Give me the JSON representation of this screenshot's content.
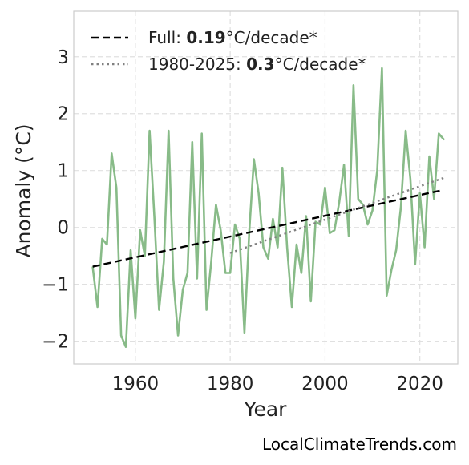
{
  "chart_data": {
    "type": "line",
    "xlabel": "Year",
    "ylabel": "Anomaly (°C)",
    "xlim": [
      1947,
      2028
    ],
    "ylim": [
      -2.4,
      3.8
    ],
    "x_ticks": [
      1960,
      1980,
      2000,
      2020
    ],
    "y_ticks": [
      -2,
      -1,
      0,
      1,
      2,
      3
    ],
    "y_tick_labels": [
      "−2",
      "−1",
      "0",
      "1",
      "2",
      "3"
    ],
    "grid": true,
    "legend_position": "top-left",
    "series": [
      {
        "color": "#88bb88",
        "style": "solid",
        "x": [
          1951,
          1952,
          1953,
          1954,
          1955,
          1956,
          1957,
          1958,
          1959,
          1960,
          1961,
          1962,
          1963,
          1964,
          1965,
          1966,
          1967,
          1968,
          1969,
          1970,
          1971,
          1972,
          1973,
          1974,
          1975,
          1976,
          1977,
          1978,
          1979,
          1980,
          1981,
          1982,
          1983,
          1984,
          1985,
          1986,
          1987,
          1988,
          1989,
          1990,
          1991,
          1992,
          1993,
          1994,
          1995,
          1996,
          1997,
          1998,
          1999,
          2000,
          2001,
          2002,
          2003,
          2004,
          2005,
          2006,
          2007,
          2008,
          2009,
          2010,
          2011,
          2012,
          2013,
          2014,
          2015,
          2016,
          2017,
          2018,
          2019,
          2020,
          2021,
          2022,
          2023,
          2024,
          2025
        ],
        "y": [
          -0.7,
          -1.4,
          -0.2,
          -0.3,
          1.3,
          0.7,
          -1.9,
          -2.1,
          -0.4,
          -1.6,
          -0.05,
          -0.5,
          1.7,
          0.2,
          -1.45,
          -0.6,
          1.7,
          -0.9,
          -1.9,
          -1.1,
          -0.8,
          1.5,
          -0.9,
          1.65,
          -1.45,
          -0.6,
          0.4,
          -0.05,
          -0.8,
          -0.8,
          0.05,
          -0.2,
          -1.85,
          -0.1,
          1.2,
          0.6,
          -0.35,
          -0.55,
          0.15,
          -0.35,
          1.05,
          -0.35,
          -1.4,
          -0.3,
          -0.8,
          0.2,
          -1.3,
          0.1,
          0.05,
          0.7,
          -0.1,
          -0.05,
          0.45,
          1.1,
          -0.15,
          2.5,
          0.5,
          0.4,
          0.05,
          0.3,
          1.0,
          2.8,
          -1.2,
          -0.75,
          -0.4,
          0.35,
          1.7,
          0.85,
          -0.65,
          0.6,
          -0.35,
          1.25,
          0.5,
          1.65,
          1.55
        ]
      },
      {
        "name": "Full",
        "rate": "0.19",
        "unit": "°C/decade*",
        "color": "#000000",
        "style": "dashed",
        "x": [
          1951,
          2025
        ],
        "y": [
          -0.69,
          0.66
        ]
      },
      {
        "name": "1980-2025",
        "rate": "0.3",
        "unit": "°C/decade*",
        "color": "#808080",
        "style": "dotted",
        "x": [
          1980,
          2025
        ],
        "y": [
          -0.45,
          0.87
        ]
      }
    ]
  },
  "source": "LocalClimateTrends.com"
}
